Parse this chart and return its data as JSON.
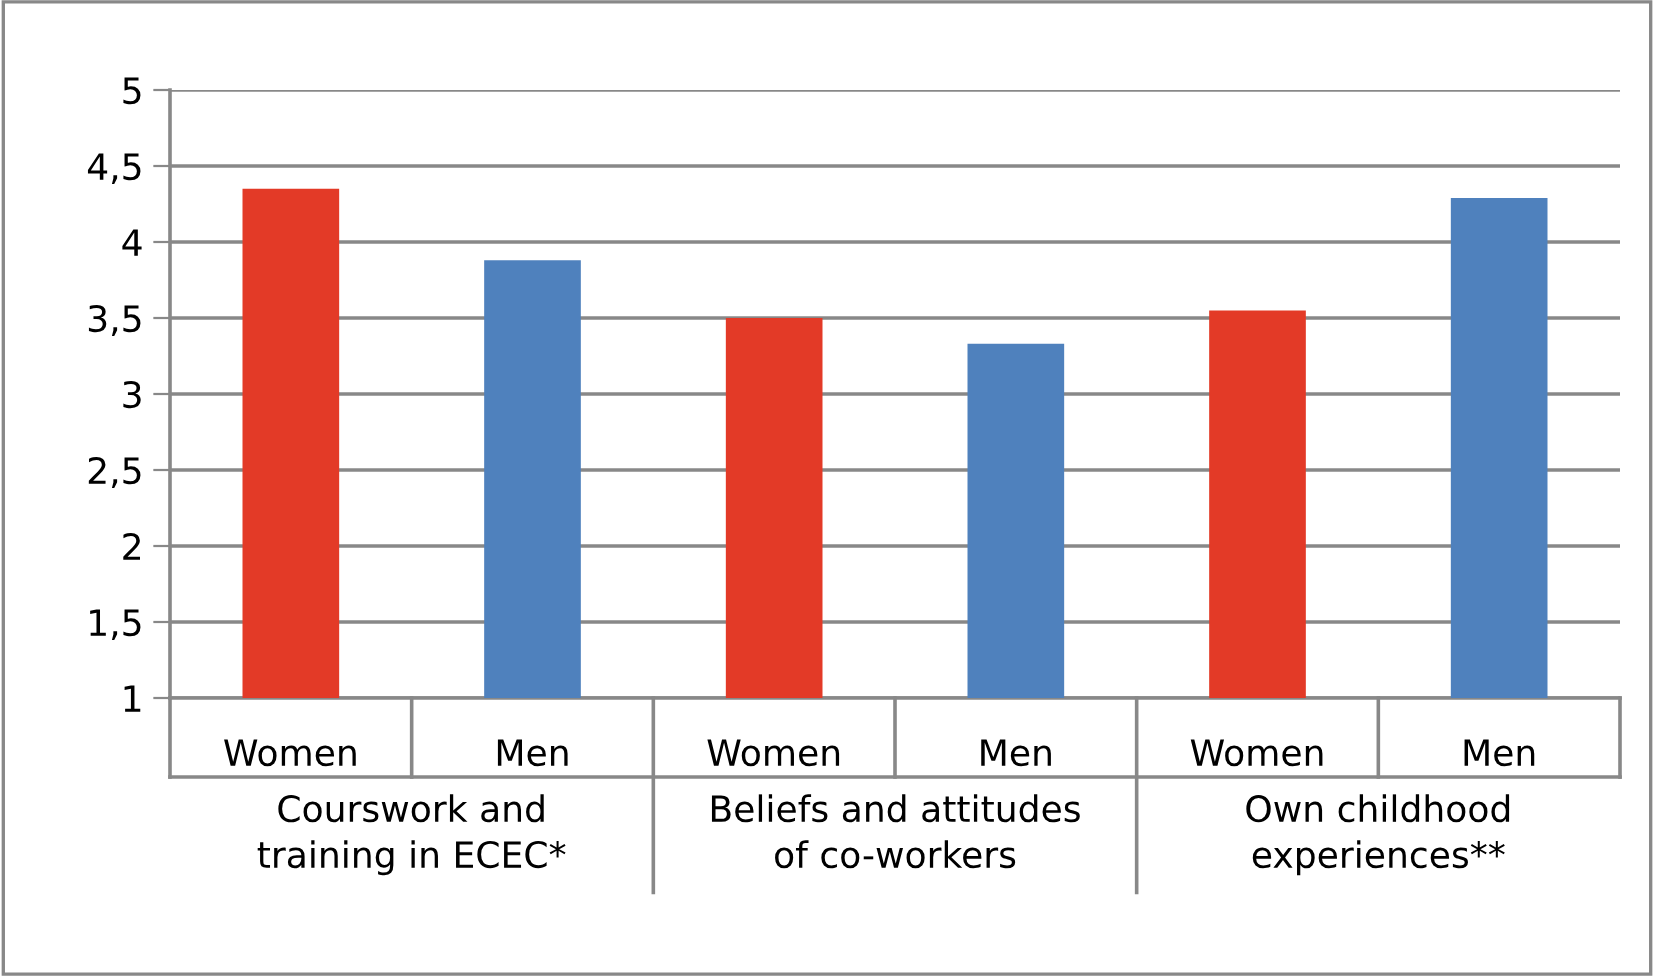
{
  "chart_data": {
    "type": "bar",
    "categories": [
      "Women",
      "Men",
      "Women",
      "Men",
      "Women",
      "Men"
    ],
    "values": [
      4.35,
      3.88,
      3.5,
      3.33,
      3.55,
      4.29
    ],
    "colors": [
      "#e33a27",
      "#4f81bd",
      "#e33a27",
      "#4f81bd",
      "#e33a27",
      "#4f81bd"
    ],
    "ylim": [
      1,
      5
    ],
    "yticks": [
      1,
      {
        "value": 1.5,
        "label": "1,5"
      },
      2,
      {
        "value": 2.5,
        "label": "2,5"
      },
      3,
      {
        "value": 3.5,
        "label": "3,5"
      },
      4,
      {
        "value": 4.5,
        "label": "4,5"
      },
      5
    ],
    "grid": "y",
    "annotations": [
      "Courswork and\ntraining in ECEC*",
      "Beliefs and attitudes\nof co-workers",
      "Own childhood\nexperiences**"
    ]
  }
}
